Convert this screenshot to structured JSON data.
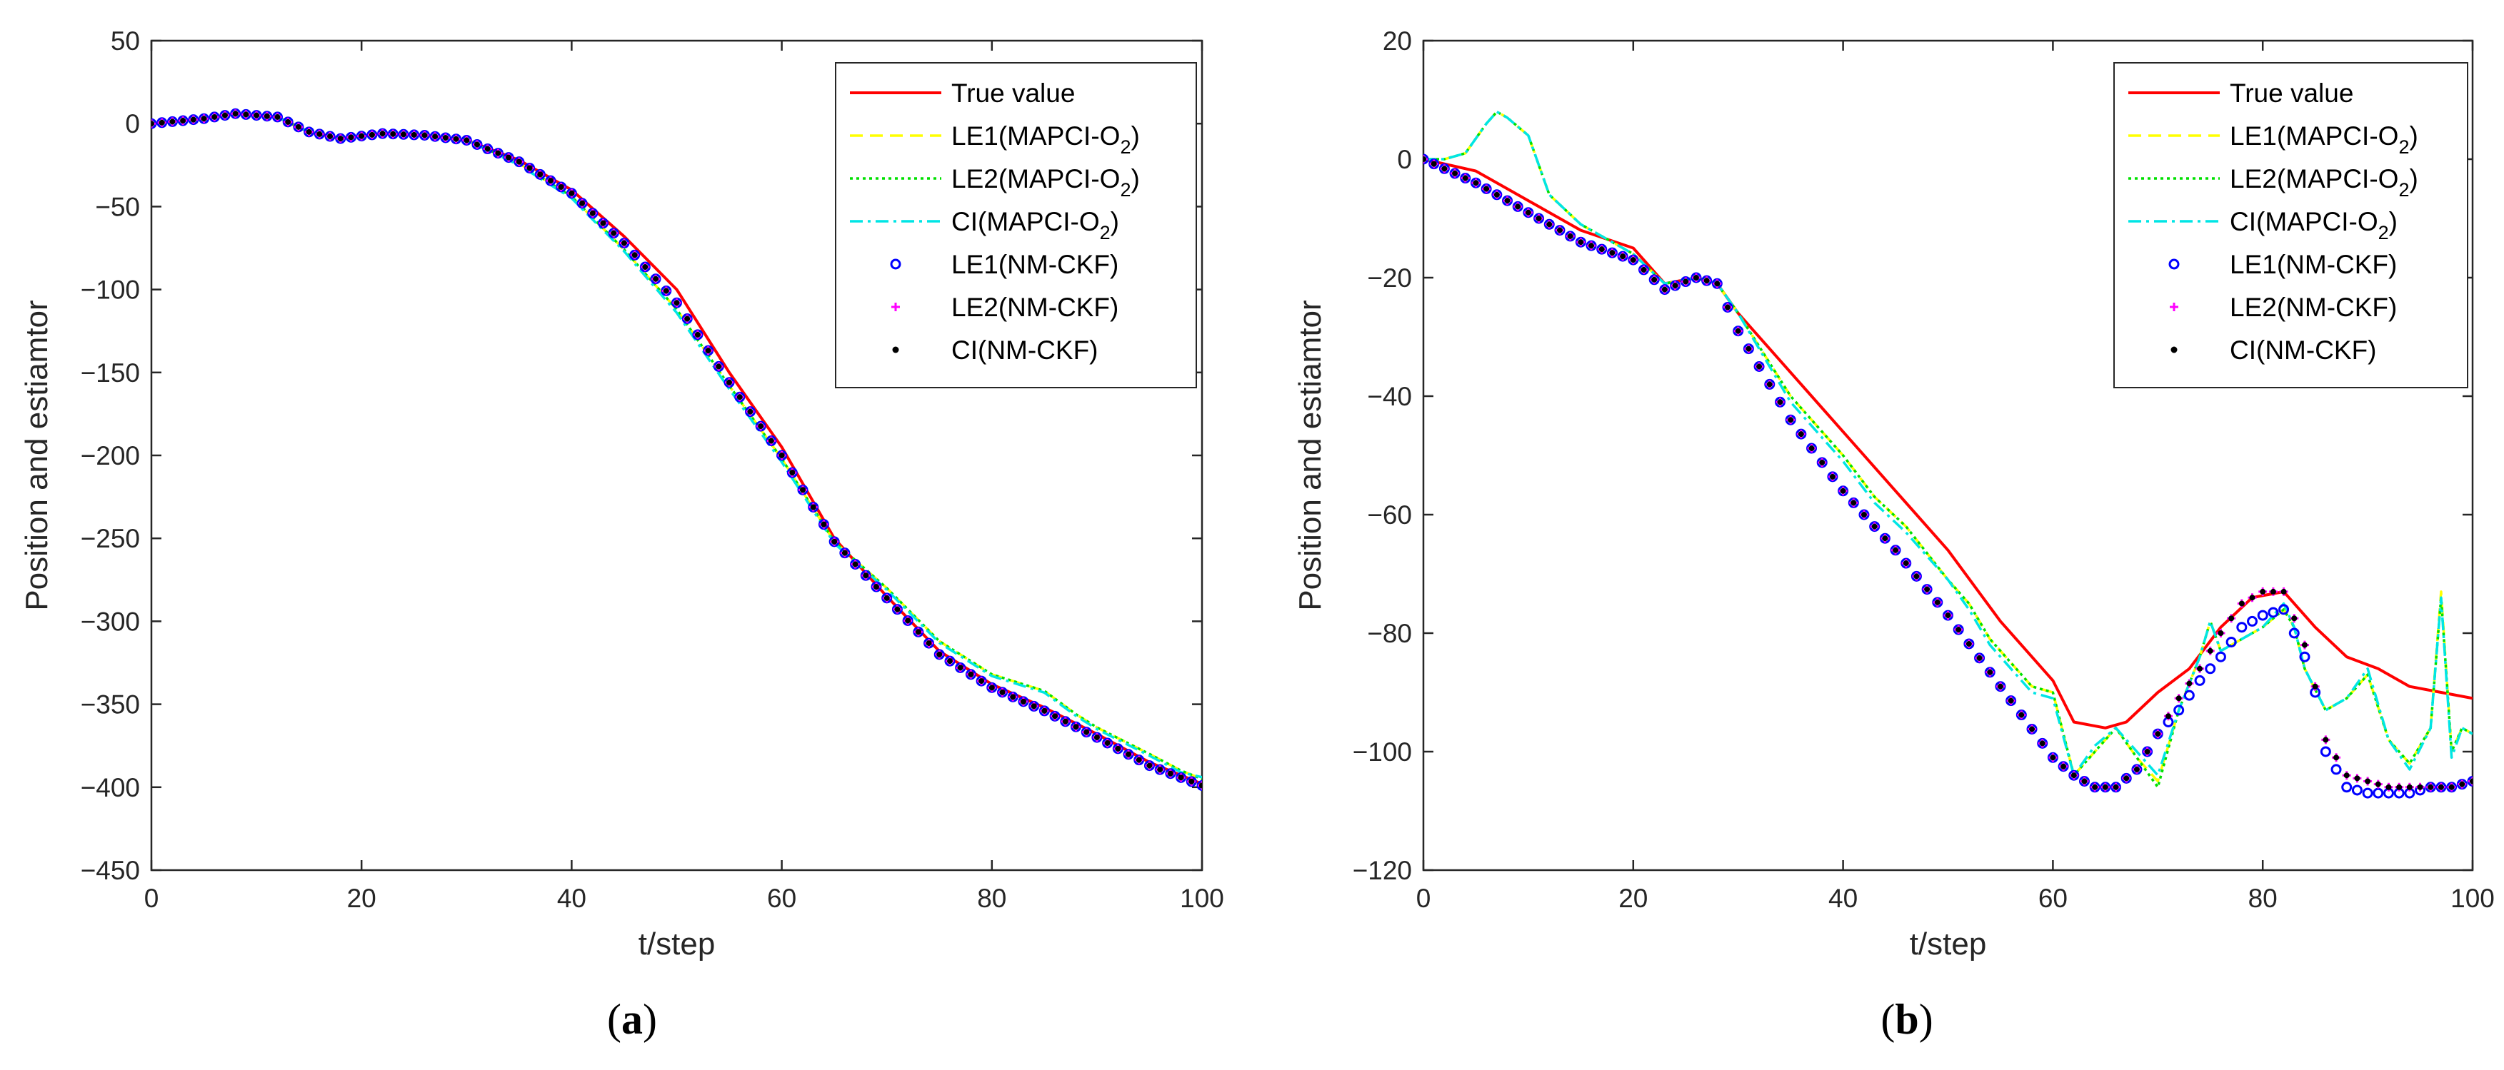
{
  "figure": {
    "panel_labels": [
      "(a)",
      "(b)"
    ]
  },
  "legend": {
    "entries": [
      {
        "key": "true",
        "label": "True value",
        "sub": "",
        "tail": "",
        "color": "#ff0000",
        "style": "solid"
      },
      {
        "key": "le1m",
        "label": "LE1(MAPCI-O",
        "sub": "2",
        "tail": ")",
        "color": "#ffff00",
        "style": "dashed"
      },
      {
        "key": "le2m",
        "label": "LE2(MAPCI-O",
        "sub": "2",
        "tail": ")",
        "color": "#00e000",
        "style": "dotted"
      },
      {
        "key": "cim",
        "label": "CI(MAPCI-O",
        "sub": "2",
        "tail": ")",
        "color": "#00e5e5",
        "style": "dashdot"
      },
      {
        "key": "le1n",
        "label": "LE1(NM-CKF)",
        "sub": "",
        "tail": "",
        "color": "#0000ff",
        "style": "circle"
      },
      {
        "key": "le2n",
        "label": "LE2(NM-CKF)",
        "sub": "",
        "tail": "",
        "color": "#ff00ff",
        "style": "plus"
      },
      {
        "key": "cin",
        "label": "CI(NM-CKF)",
        "sub": "",
        "tail": "",
        "color": "#000000",
        "style": "dot"
      }
    ]
  },
  "chart_data": [
    {
      "type": "line",
      "panel": "(a)",
      "title": "",
      "xlabel": "t/step",
      "ylabel": "Position and estiamtor",
      "xlim": [
        0,
        100
      ],
      "ylim": [
        -450,
        50
      ],
      "xticks": [
        0,
        20,
        40,
        60,
        80,
        100
      ],
      "yticks": [
        -450,
        -400,
        -350,
        -300,
        -250,
        -200,
        -150,
        -100,
        -50,
        0,
        50
      ],
      "legend_position": "top-right",
      "series": [
        {
          "name": "True value",
          "x": [
            0,
            5,
            8,
            12,
            15,
            18,
            22,
            26,
            30,
            35,
            40,
            45,
            50,
            55,
            60,
            65,
            70,
            75,
            80,
            85,
            90,
            95,
            100
          ],
          "y": [
            0,
            3,
            6,
            4,
            -5,
            -9,
            -6,
            -7,
            -10,
            -22,
            -40,
            -68,
            -100,
            -150,
            -195,
            -250,
            -285,
            -318,
            -338,
            -352,
            -368,
            -385,
            -398
          ]
        },
        {
          "name": "LE1(MAPCI-O2)",
          "x": [
            0,
            5,
            8,
            12,
            15,
            18,
            22,
            26,
            30,
            35,
            40,
            45,
            50,
            55,
            60,
            65,
            70,
            75,
            80,
            82,
            85,
            88,
            90,
            95,
            98,
            100
          ],
          "y": [
            0,
            3,
            6,
            4,
            -5,
            -9,
            -6,
            -7,
            -10,
            -24,
            -44,
            -76,
            -112,
            -158,
            -202,
            -252,
            -280,
            -312,
            -332,
            -336,
            -342,
            -356,
            -364,
            -380,
            -390,
            -395
          ]
        },
        {
          "name": "LE2(MAPCI-O2)",
          "x": [
            0,
            5,
            8,
            12,
            15,
            18,
            22,
            26,
            30,
            35,
            40,
            45,
            50,
            55,
            60,
            65,
            70,
            75,
            80,
            82,
            85,
            88,
            90,
            95,
            98,
            100
          ],
          "y": [
            0,
            3,
            6,
            4,
            -5,
            -9,
            -6,
            -7,
            -10,
            -24,
            -44,
            -76,
            -112,
            -158,
            -202,
            -252,
            -280,
            -312,
            -332,
            -336,
            -342,
            -356,
            -364,
            -380,
            -390,
            -395
          ]
        },
        {
          "name": "CI(MAPCI-O2)",
          "x": [
            0,
            5,
            8,
            12,
            15,
            18,
            22,
            26,
            30,
            35,
            40,
            45,
            50,
            55,
            60,
            65,
            70,
            75,
            80,
            82,
            85,
            88,
            90,
            95,
            98,
            100
          ],
          "y": [
            0,
            3,
            6,
            4,
            -5,
            -9,
            -6,
            -7,
            -10,
            -25,
            -45,
            -77,
            -114,
            -160,
            -204,
            -253,
            -281,
            -313,
            -333,
            -337,
            -343,
            -357,
            -365,
            -381,
            -391,
            -394
          ]
        },
        {
          "name": "LE1(NM-CKF)",
          "x": [
            0,
            5,
            8,
            12,
            15,
            18,
            22,
            26,
            30,
            35,
            40,
            45,
            50,
            55,
            60,
            65,
            70,
            75,
            80,
            85,
            90,
            95,
            100
          ],
          "y": [
            0,
            3,
            6,
            4,
            -5,
            -9,
            -6,
            -7,
            -10,
            -23,
            -42,
            -72,
            -108,
            -156,
            -200,
            -252,
            -286,
            -320,
            -340,
            -354,
            -370,
            -387,
            -399
          ]
        },
        {
          "name": "LE2(NM-CKF)",
          "x": [
            0,
            5,
            8,
            12,
            15,
            18,
            22,
            26,
            30,
            35,
            40,
            45,
            50,
            55,
            60,
            65,
            70,
            75,
            80,
            85,
            90,
            95,
            100
          ],
          "y": [
            0,
            3,
            6,
            4,
            -5,
            -9,
            -6,
            -7,
            -10,
            -23,
            -42,
            -72,
            -108,
            -156,
            -200,
            -252,
            -286,
            -320,
            -340,
            -354,
            -370,
            -387,
            -399
          ]
        },
        {
          "name": "CI(NM-CKF)",
          "x": [
            0,
            5,
            8,
            12,
            15,
            18,
            22,
            26,
            30,
            35,
            40,
            45,
            50,
            55,
            60,
            65,
            70,
            75,
            80,
            85,
            90,
            95,
            100
          ],
          "y": [
            0,
            3,
            6,
            4,
            -5,
            -9,
            -6,
            -7,
            -10,
            -23,
            -42,
            -72,
            -108,
            -156,
            -200,
            -252,
            -286,
            -320,
            -340,
            -354,
            -370,
            -387,
            -399
          ]
        }
      ]
    },
    {
      "type": "line",
      "panel": "(b)",
      "title": "",
      "xlabel": "t/step",
      "ylabel": "Position and estiamtor",
      "xlim": [
        0,
        100
      ],
      "ylim": [
        -120,
        20
      ],
      "xticks": [
        0,
        20,
        40,
        60,
        80,
        100
      ],
      "yticks": [
        -120,
        -100,
        -80,
        -60,
        -40,
        -20,
        0,
        20
      ],
      "legend_position": "top-right",
      "series": [
        {
          "name": "True value",
          "x": [
            0,
            5,
            10,
            15,
            20,
            23,
            26,
            28,
            30,
            35,
            40,
            45,
            50,
            55,
            58,
            60,
            62,
            65,
            67,
            70,
            73,
            76,
            79,
            82,
            85,
            88,
            91,
            94,
            97,
            100
          ],
          "y": [
            0,
            -2,
            -7,
            -12,
            -15,
            -21,
            -20,
            -21,
            -26,
            -36,
            -46,
            -56,
            -66,
            -78,
            -84,
            -88,
            -95,
            -96,
            -95,
            -90,
            -86,
            -79,
            -74,
            -73,
            -79,
            -84,
            -86,
            -89,
            -90,
            -91
          ]
        },
        {
          "name": "LE1(MAPCI-O2)",
          "x": [
            0,
            2,
            4,
            6,
            7,
            8,
            10,
            12,
            15,
            18,
            20,
            23,
            26,
            28,
            30,
            35,
            40,
            43,
            46,
            50,
            52,
            54,
            56,
            58,
            60,
            62,
            64,
            66,
            68,
            70,
            72,
            74,
            75,
            76,
            78,
            80,
            82,
            83,
            84,
            86,
            88,
            90,
            92,
            94,
            96,
            97,
            98,
            99,
            100
          ],
          "y": [
            0,
            0,
            1,
            6,
            8,
            7,
            4,
            -6,
            -11,
            -14,
            -16,
            -21,
            -20,
            -21,
            -26,
            -40,
            -50,
            -57,
            -62,
            -71,
            -75,
            -81,
            -85,
            -89,
            -90,
            -104,
            -100,
            -96,
            -101,
            -105,
            -93,
            -84,
            -78,
            -83,
            -81,
            -79,
            -76,
            -79,
            -86,
            -93,
            -91,
            -87,
            -98,
            -102,
            -96,
            -73,
            -100,
            -96,
            -97
          ]
        },
        {
          "name": "LE2(MAPCI-O2)",
          "x": [
            0,
            2,
            4,
            6,
            7,
            8,
            10,
            12,
            15,
            18,
            20,
            23,
            26,
            28,
            30,
            35,
            40,
            43,
            46,
            50,
            52,
            54,
            56,
            58,
            60,
            62,
            64,
            66,
            68,
            70,
            72,
            74,
            75,
            76,
            78,
            80,
            82,
            83,
            84,
            86,
            88,
            90,
            92,
            94,
            96,
            97,
            98,
            99,
            100
          ],
          "y": [
            0,
            0,
            1,
            6,
            8,
            7,
            4,
            -6,
            -11,
            -14,
            -16,
            -21,
            -20,
            -21,
            -26,
            -40,
            -50,
            -57,
            -62,
            -71,
            -75,
            -81,
            -85,
            -89,
            -90,
            -104,
            -100,
            -96,
            -101,
            -106,
            -93,
            -84,
            -78,
            -83,
            -81,
            -79,
            -76,
            -79,
            -86,
            -93,
            -91,
            -87,
            -98,
            -102,
            -96,
            -74,
            -100,
            -96,
            -97
          ]
        },
        {
          "name": "CI(MAPCI-O2)",
          "x": [
            0,
            2,
            4,
            6,
            7,
            8,
            10,
            12,
            15,
            18,
            20,
            23,
            26,
            28,
            30,
            35,
            40,
            43,
            46,
            50,
            52,
            54,
            56,
            58,
            60,
            62,
            64,
            66,
            68,
            70,
            72,
            74,
            75,
            76,
            78,
            80,
            82,
            83,
            84,
            86,
            88,
            90,
            92,
            94,
            96,
            97,
            98,
            99,
            100
          ],
          "y": [
            0,
            0,
            1,
            6,
            8,
            7,
            4,
            -6,
            -11,
            -14,
            -16,
            -21,
            -20,
            -21,
            -26,
            -41,
            -51,
            -58,
            -63,
            -71,
            -76,
            -82,
            -86,
            -90,
            -91,
            -104,
            -99,
            -96,
            -100,
            -104,
            -93,
            -84,
            -78,
            -83,
            -81,
            -79,
            -75,
            -79,
            -86,
            -93,
            -91,
            -86,
            -98,
            -103,
            -96,
            -74,
            -101,
            -96,
            -97
          ]
        },
        {
          "name": "LE1(NM-CKF)",
          "x": [
            0,
            5,
            10,
            15,
            20,
            23,
            26,
            28,
            30,
            35,
            40,
            45,
            50,
            55,
            60,
            62,
            64,
            66,
            68,
            70,
            72,
            74,
            76,
            78,
            80,
            82,
            84,
            85,
            86,
            88,
            90,
            92,
            94,
            96,
            98,
            100
          ],
          "y": [
            0,
            -4,
            -9,
            -14,
            -17,
            -22,
            -20,
            -21,
            -29,
            -44,
            -56,
            -66,
            -77,
            -89,
            -101,
            -104,
            -106,
            -106,
            -103,
            -97,
            -93,
            -88,
            -84,
            -79,
            -77,
            -76,
            -84,
            -90,
            -100,
            -106,
            -107,
            -107,
            -107,
            -106,
            -106,
            -105
          ]
        },
        {
          "name": "LE2(NM-CKF)",
          "x": [
            0,
            5,
            10,
            15,
            20,
            23,
            26,
            28,
            30,
            35,
            40,
            45,
            50,
            55,
            60,
            62,
            64,
            66,
            68,
            70,
            72,
            74,
            76,
            78,
            80,
            82,
            84,
            85,
            86,
            88,
            90,
            92,
            94,
            96,
            98,
            100
          ],
          "y": [
            0,
            -4,
            -9,
            -14,
            -17,
            -22,
            -20,
            -21,
            -29,
            -44,
            -56,
            -66,
            -77,
            -89,
            -101,
            -104,
            -106,
            -106,
            -103,
            -97,
            -91,
            -86,
            -80,
            -75,
            -73,
            -73,
            -82,
            -89,
            -98,
            -104,
            -105,
            -106,
            -106,
            -106,
            -106,
            -105
          ]
        },
        {
          "name": "CI(NM-CKF)",
          "x": [
            0,
            5,
            10,
            15,
            20,
            23,
            26,
            28,
            30,
            35,
            40,
            45,
            50,
            55,
            60,
            62,
            64,
            66,
            68,
            70,
            72,
            74,
            76,
            78,
            80,
            82,
            84,
            85,
            86,
            88,
            90,
            92,
            94,
            96,
            98,
            100
          ],
          "y": [
            0,
            -4,
            -9,
            -14,
            -17,
            -22,
            -20,
            -21,
            -29,
            -44,
            -56,
            -66,
            -77,
            -89,
            -101,
            -104,
            -106,
            -106,
            -103,
            -97,
            -91,
            -86,
            -80,
            -75,
            -73,
            -73,
            -82,
            -89,
            -98,
            -104,
            -105,
            -106,
            -106,
            -106,
            -106,
            -105
          ]
        }
      ]
    }
  ]
}
